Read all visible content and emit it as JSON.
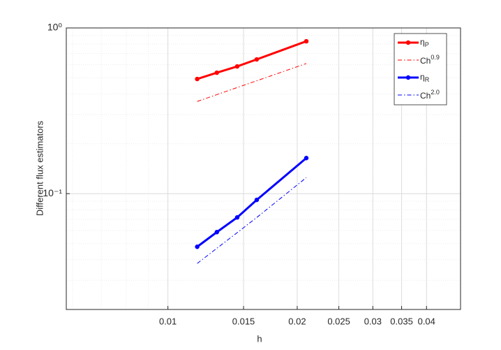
{
  "chart_data": {
    "type": "line",
    "xlabel": "h",
    "ylabel": "Different flux estimators",
    "xscale": "log",
    "yscale": "log",
    "xlim": [
      0.0058,
      0.048
    ],
    "ylim": [
      0.02,
      1
    ],
    "xticks": [
      0.01,
      0.015,
      0.02,
      0.025,
      0.03,
      0.035,
      0.04
    ],
    "yticks": [
      {
        "value": 0.1,
        "label": "10⁻¹"
      },
      {
        "value": 1,
        "label": "10⁰"
      }
    ],
    "grid": true,
    "minor_grid": true,
    "legend": "top-right",
    "x": [
      0.0117,
      0.013,
      0.0145,
      0.0161,
      0.021
    ],
    "series": [
      {
        "name": "η",
        "sub": "P",
        "color": "#ff0000",
        "style": "solid-marker",
        "values": [
          0.492,
          0.537,
          0.586,
          0.646,
          0.831
        ]
      },
      {
        "name": "Ch",
        "sup": "0.9",
        "color": "#ff0000",
        "style": "dashdot",
        "values": [
          0.36,
          0.396,
          0.437,
          0.48,
          0.61
        ]
      },
      {
        "name": "η",
        "sub": "R",
        "color": "#0000ff",
        "style": "solid-marker",
        "values": [
          0.0478,
          0.0586,
          0.0719,
          0.0917,
          0.164
        ]
      },
      {
        "name": "Ch",
        "sup": "2.0",
        "color": "#0000ff",
        "style": "dashdot",
        "values": [
          0.0379,
          0.0468,
          0.0582,
          0.0718,
          0.125
        ]
      }
    ]
  }
}
